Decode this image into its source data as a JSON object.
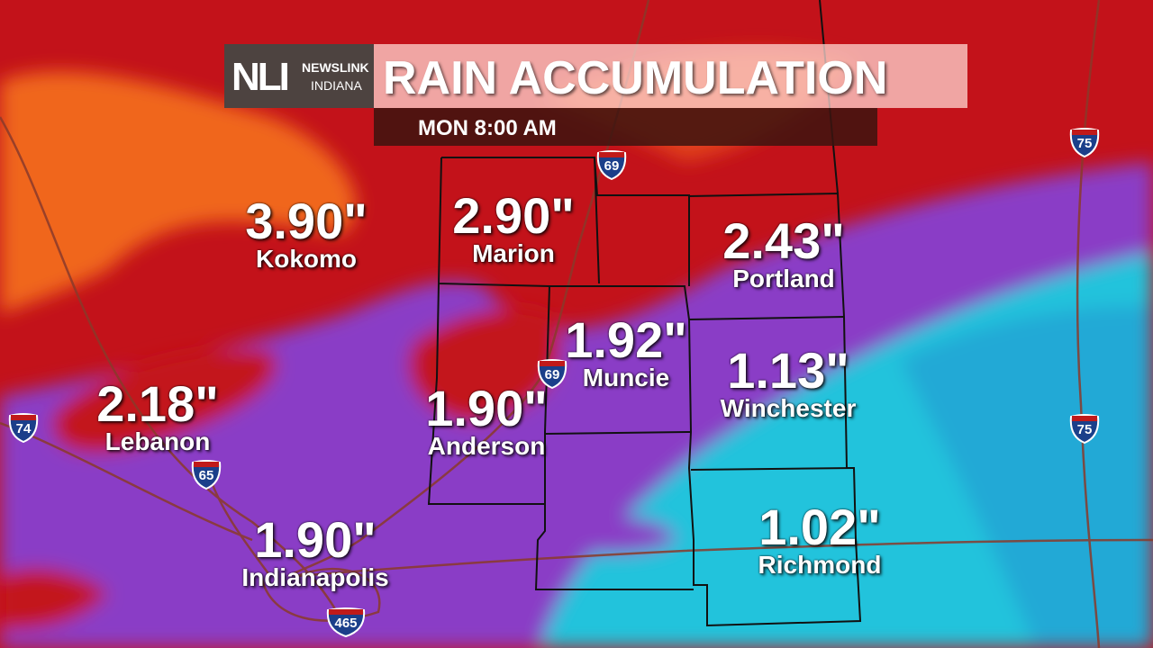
{
  "header": {
    "logo_text": "NLI",
    "brand_line1": "NEWSLINK",
    "brand_line2": "INDIANA",
    "title": "RAIN ACCUMULATION",
    "time": "MON 8:00 AM"
  },
  "colors": {
    "heavy": "#c3121a",
    "very_heavy": "#f0661a",
    "moderate": "#8a3cc6",
    "light": "#22c3dc",
    "lightest": "#1f6fb8"
  },
  "cities": [
    {
      "name": "Kokomo",
      "value": "3.90\""
    },
    {
      "name": "Marion",
      "value": "2.90\""
    },
    {
      "name": "Portland",
      "value": "2.43\""
    },
    {
      "name": "Muncie",
      "value": "1.92\""
    },
    {
      "name": "Winchester",
      "value": "1.13\""
    },
    {
      "name": "Lebanon",
      "value": "2.18\""
    },
    {
      "name": "Anderson",
      "value": "1.90\""
    },
    {
      "name": "Indianapolis",
      "value": "1.90\""
    },
    {
      "name": "Richmond",
      "value": "1.02\""
    }
  ],
  "highways": [
    "74",
    "65",
    "69",
    "69",
    "465",
    "75",
    "75"
  ]
}
